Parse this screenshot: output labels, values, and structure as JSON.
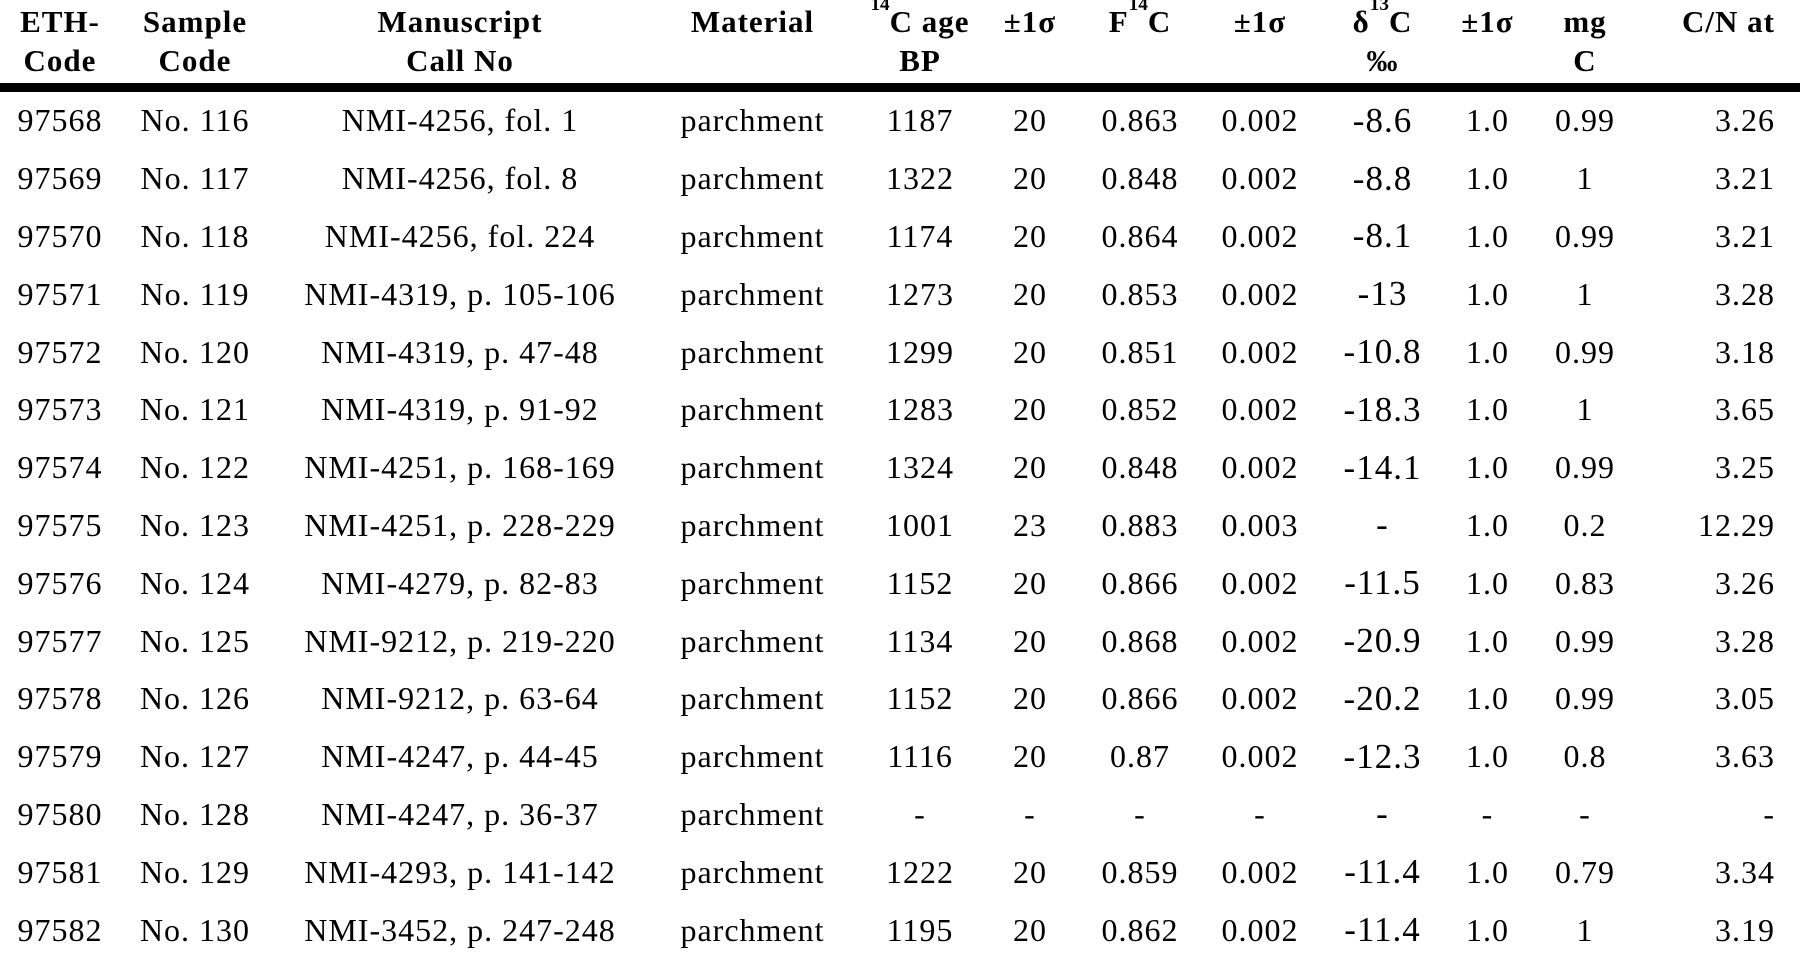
{
  "colors": {
    "background": "#ffffff",
    "text": "#000000",
    "header_rule": "#000000"
  },
  "table": {
    "columns": [
      {
        "pre": "",
        "sup": "",
        "main": "ETH-",
        "line2": "Code"
      },
      {
        "pre": "",
        "sup": "",
        "main": "Sample",
        "line2": "Code"
      },
      {
        "pre": "",
        "sup": "",
        "main": "Manuscript",
        "line2": "Call No"
      },
      {
        "pre": "",
        "sup": "",
        "main": "Material",
        "line2": ""
      },
      {
        "pre": "",
        "sup": "14",
        "main": "C age",
        "line2": "BP"
      },
      {
        "pre": "",
        "sup": "",
        "main": "±1σ",
        "line2": ""
      },
      {
        "pre": "F",
        "sup": "14",
        "main": "C",
        "line2": ""
      },
      {
        "pre": "",
        "sup": "",
        "main": "±1σ",
        "line2": ""
      },
      {
        "pre": "δ",
        "sup": "13",
        "main": "C",
        "line2": "‰"
      },
      {
        "pre": "",
        "sup": "",
        "main": "±1σ",
        "line2": ""
      },
      {
        "pre": "",
        "sup": "",
        "main": "mg",
        "line2": "C"
      },
      {
        "pre": "",
        "sup": "",
        "main": "C/N at",
        "line2": ""
      }
    ],
    "rows": [
      [
        "97568",
        "No. 116",
        "NMI-4256, fol. 1",
        "parchment",
        "1187",
        "20",
        "0.863",
        "0.002",
        "-8.6",
        "1.0",
        "0.99",
        "3.26"
      ],
      [
        "97569",
        "No. 117",
        "NMI-4256, fol. 8",
        "parchment",
        "1322",
        "20",
        "0.848",
        "0.002",
        "-8.8",
        "1.0",
        "1",
        "3.21"
      ],
      [
        "97570",
        "No. 118",
        "NMI-4256, fol. 224",
        "parchment",
        "1174",
        "20",
        "0.864",
        "0.002",
        "-8.1",
        "1.0",
        "0.99",
        "3.21"
      ],
      [
        "97571",
        "No. 119",
        "NMI-4319, p. 105-106",
        "parchment",
        "1273",
        "20",
        "0.853",
        "0.002",
        "-13",
        "1.0",
        "1",
        "3.28"
      ],
      [
        "97572",
        "No. 120",
        "NMI-4319, p. 47-48",
        "parchment",
        "1299",
        "20",
        "0.851",
        "0.002",
        "-10.8",
        "1.0",
        "0.99",
        "3.18"
      ],
      [
        "97573",
        "No. 121",
        "NMI-4319, p. 91-92",
        "parchment",
        "1283",
        "20",
        "0.852",
        "0.002",
        "-18.3",
        "1.0",
        "1",
        "3.65"
      ],
      [
        "97574",
        "No. 122",
        "NMI-4251, p. 168-169",
        "parchment",
        "1324",
        "20",
        "0.848",
        "0.002",
        "-14.1",
        "1.0",
        "0.99",
        "3.25"
      ],
      [
        "97575",
        "No. 123",
        "NMI-4251, p. 228-229",
        "parchment",
        "1001",
        "23",
        "0.883",
        "0.003",
        "-",
        "1.0",
        "0.2",
        "12.29"
      ],
      [
        "97576",
        "No. 124",
        "NMI-4279, p. 82-83",
        "parchment",
        "1152",
        "20",
        "0.866",
        "0.002",
        "-11.5",
        "1.0",
        "0.83",
        "3.26"
      ],
      [
        "97577",
        "No. 125",
        "NMI-9212, p. 219-220",
        "parchment",
        "1134",
        "20",
        "0.868",
        "0.002",
        "-20.9",
        "1.0",
        "0.99",
        "3.28"
      ],
      [
        "97578",
        "No. 126",
        "NMI-9212, p. 63-64",
        "parchment",
        "1152",
        "20",
        "0.866",
        "0.002",
        "-20.2",
        "1.0",
        "0.99",
        "3.05"
      ],
      [
        "97579",
        "No. 127",
        "NMI-4247, p. 44-45",
        "parchment",
        "1116",
        "20",
        "0.87",
        "0.002",
        "-12.3",
        "1.0",
        "0.8",
        "3.63"
      ],
      [
        "97580",
        "No. 128",
        "NMI-4247, p. 36-37",
        "parchment",
        "-",
        "-",
        "-",
        "-",
        "-",
        "-",
        "-",
        "-"
      ],
      [
        "97581",
        "No. 129",
        "NMI-4293, p. 141-142",
        "parchment",
        "1222",
        "20",
        "0.859",
        "0.002",
        "-11.4",
        "1.0",
        "0.79",
        "3.34"
      ],
      [
        "97582",
        "No. 130",
        "NMI-3452, p. 247-248",
        "parchment",
        "1195",
        "20",
        "0.862",
        "0.002",
        "-11.4",
        "1.0",
        "1",
        "3.19"
      ]
    ]
  }
}
